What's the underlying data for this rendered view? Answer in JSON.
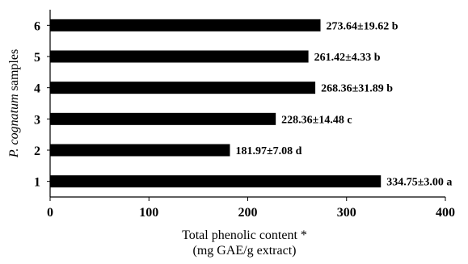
{
  "chart_data": {
    "type": "bar",
    "orientation": "horizontal",
    "categories": [
      "1",
      "2",
      "3",
      "4",
      "5",
      "6"
    ],
    "values": [
      334.75,
      181.97,
      228.36,
      268.36,
      261.42,
      273.64
    ],
    "data_labels": [
      "334.75±3.00 a",
      "181.97±7.08 d",
      "228.36±14.48 c",
      "268.36±31.89 b",
      "261.42±4.33 b",
      "273.64±19.62 b"
    ],
    "xlabel_line1": "Total phenolic content *",
    "xlabel_line2": "(mg GAE/g extract)",
    "ylabel_italic": "P. cognatum",
    "ylabel_rest": " samples",
    "xlim": [
      0,
      400
    ],
    "xticks": [
      0,
      100,
      200,
      300,
      400
    ],
    "xtick_labels": [
      "0",
      "100",
      "200",
      "300",
      "400"
    ],
    "bar_color": "#000000",
    "grid": false,
    "legend": "none"
  }
}
